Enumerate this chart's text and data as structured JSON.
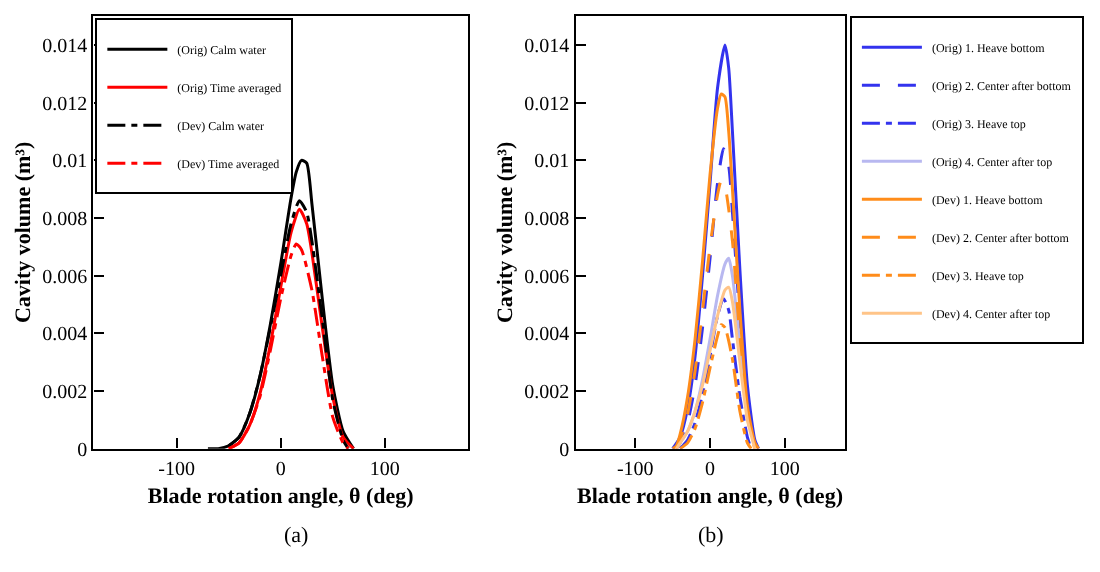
{
  "chart_data": [
    {
      "type": "line",
      "xlabel": "Blade rotation angle, θ (deg)",
      "ylabel": "Cavity volume (m³)",
      "xlim": [
        -180,
        180
      ],
      "xticks": [
        -100,
        0,
        100
      ],
      "ylim": [
        0,
        0.015
      ],
      "yticks": [
        0,
        0.002,
        0.004,
        0.006,
        0.008,
        0.01,
        0.012,
        0.014
      ],
      "legend": "top left",
      "marker": "none",
      "annotations": [
        "(a)"
      ],
      "series": [
        {
          "name": "(Orig) Calm water",
          "color": "#000000",
          "line_style": "solid",
          "x": [
            -70,
            -60,
            -50,
            -40,
            -30,
            -20,
            -10,
            0,
            10,
            15,
            20,
            25,
            30,
            40,
            50,
            60,
            70
          ],
          "values": [
            0,
            0,
            0.0001,
            0.0004,
            0.0012,
            0.0025,
            0.0043,
            0.0064,
            0.0087,
            0.0096,
            0.01,
            0.0099,
            0.0085,
            0.0052,
            0.0022,
            0.0006,
            0
          ]
        },
        {
          "name": "(Orig) Time averaged",
          "color": "#ff0000",
          "line_style": "solid",
          "x": [
            -50,
            -40,
            -30,
            -20,
            -10,
            0,
            10,
            18,
            25,
            30,
            40,
            50,
            60,
            70
          ],
          "values": [
            0,
            0.0002,
            0.0008,
            0.0019,
            0.0036,
            0.0056,
            0.0075,
            0.0083,
            0.0078,
            0.0068,
            0.0042,
            0.0018,
            0.0004,
            0
          ]
        },
        {
          "name": "(Dev) Calm water",
          "color": "#000000",
          "line_style": "dashdot",
          "x": [
            -50,
            -40,
            -30,
            -20,
            -10,
            0,
            10,
            18,
            25,
            30,
            40,
            50,
            60,
            65
          ],
          "values": [
            0.0001,
            0.0004,
            0.0012,
            0.0025,
            0.0042,
            0.006,
            0.0078,
            0.0086,
            0.0082,
            0.0072,
            0.0045,
            0.0017,
            0.0003,
            0
          ]
        },
        {
          "name": "(Dev) Time averaged",
          "color": "#ff0000",
          "line_style": "dashdot",
          "x": [
            -50,
            -40,
            -30,
            -20,
            -10,
            0,
            10,
            15,
            20,
            30,
            40,
            50,
            60,
            65
          ],
          "values": [
            0,
            0.0002,
            0.0008,
            0.0018,
            0.0034,
            0.0052,
            0.0067,
            0.0071,
            0.0069,
            0.0055,
            0.0032,
            0.0011,
            0.0002,
            0
          ]
        }
      ]
    },
    {
      "type": "line",
      "xlabel": "Blade rotation angle, θ (deg)",
      "ylabel": "Cavity volume (m³)",
      "xlim": [
        -180,
        180
      ],
      "xticks": [
        -100,
        0,
        100
      ],
      "ylim": [
        0,
        0.015
      ],
      "yticks": [
        0,
        0.002,
        0.004,
        0.006,
        0.008,
        0.01,
        0.012,
        0.014
      ],
      "legend": "right",
      "marker": "none",
      "annotations": [
        "(b)"
      ],
      "series": [
        {
          "name": "(Orig) 1. Heave bottom",
          "color": "#3333ee",
          "line_style": "solid",
          "x": [
            -50,
            -40,
            -30,
            -20,
            -10,
            0,
            10,
            20,
            25,
            30,
            40,
            50,
            60,
            65
          ],
          "values": [
            0,
            0.0004,
            0.0014,
            0.0032,
            0.006,
            0.0092,
            0.0125,
            0.014,
            0.0132,
            0.011,
            0.0062,
            0.0022,
            0.0003,
            0
          ]
        },
        {
          "name": "(Orig) 2. Center after bottom",
          "color": "#3333ee",
          "line_style": "dashed",
          "x": [
            -45,
            -40,
            -30,
            -20,
            -10,
            0,
            10,
            18,
            25,
            30,
            40,
            50,
            60
          ],
          "values": [
            0,
            0.0002,
            0.0009,
            0.0022,
            0.0042,
            0.0066,
            0.0092,
            0.0104,
            0.0098,
            0.0082,
            0.0045,
            0.0014,
            0.0001
          ]
        },
        {
          "name": "(Orig) 3. Heave top",
          "color": "#3333ee",
          "line_style": "dashdot",
          "x": [
            -40,
            -30,
            -20,
            -10,
            0,
            10,
            18,
            25,
            30,
            40,
            50,
            55
          ],
          "values": [
            0,
            0.0003,
            0.0009,
            0.0019,
            0.0032,
            0.0046,
            0.0052,
            0.0048,
            0.0038,
            0.0018,
            0.0004,
            0
          ]
        },
        {
          "name": "(Orig) 4. Center after top",
          "color": "#b8b8f0",
          "line_style": "solid",
          "x": [
            -45,
            -40,
            -30,
            -20,
            -10,
            0,
            10,
            20,
            25,
            30,
            40,
            50,
            60
          ],
          "values": [
            0,
            0.0002,
            0.0006,
            0.0013,
            0.0024,
            0.0038,
            0.0053,
            0.0064,
            0.0066,
            0.006,
            0.0036,
            0.0012,
            0.0001
          ]
        },
        {
          "name": "(Dev) 1. Heave bottom",
          "color": "#ff8c1a",
          "line_style": "solid",
          "x": [
            -50,
            -45,
            -40,
            -30,
            -20,
            -10,
            0,
            10,
            15,
            20,
            25,
            30,
            40,
            50,
            60,
            65
          ],
          "values": [
            0,
            0.0001,
            0.0005,
            0.0018,
            0.0038,
            0.0065,
            0.0095,
            0.0118,
            0.0123,
            0.0122,
            0.011,
            0.009,
            0.0048,
            0.0015,
            0.0002,
            0
          ]
        },
        {
          "name": "(Dev) 2. Center after bottom",
          "color": "#ff8c1a",
          "line_style": "dashed",
          "x": [
            -45,
            -40,
            -30,
            -20,
            -10,
            0,
            10,
            15,
            20,
            30,
            40,
            50,
            60
          ],
          "values": [
            0,
            0.0003,
            0.0012,
            0.0027,
            0.0048,
            0.007,
            0.0088,
            0.0093,
            0.0091,
            0.0072,
            0.0038,
            0.0011,
            0
          ]
        },
        {
          "name": "(Dev) 3. Heave top",
          "color": "#ff8c1a",
          "line_style": "dashdot",
          "x": [
            -40,
            -30,
            -20,
            -10,
            0,
            10,
            15,
            20,
            30,
            40,
            50,
            55
          ],
          "values": [
            0,
            0.0002,
            0.0007,
            0.0016,
            0.0028,
            0.0039,
            0.0043,
            0.0042,
            0.0031,
            0.0013,
            0.0002,
            0
          ]
        },
        {
          "name": "(Dev) 4. Center after top",
          "color": "#ffc488",
          "line_style": "solid",
          "x": [
            -45,
            -40,
            -30,
            -20,
            -10,
            0,
            10,
            20,
            25,
            30,
            40,
            50,
            60
          ],
          "values": [
            0,
            0.0002,
            0.0006,
            0.0013,
            0.0022,
            0.0034,
            0.0046,
            0.0055,
            0.0056,
            0.0051,
            0.003,
            0.001,
            0
          ]
        }
      ]
    }
  ]
}
